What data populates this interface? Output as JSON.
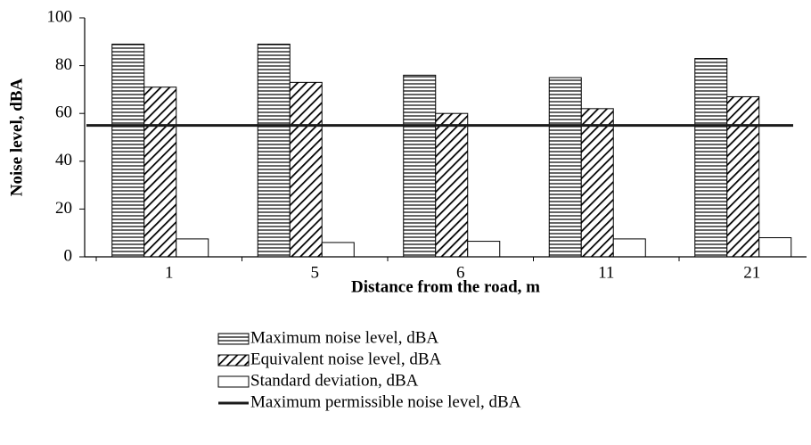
{
  "chart_data": {
    "type": "bar",
    "x_label": "Distance from the road, m",
    "y_label": "Noise level, dBA",
    "categories": [
      "1",
      "5",
      "6",
      "11",
      "21"
    ],
    "series": [
      {
        "name": "Maximum noise level, dBA",
        "color": "#000000",
        "pattern": "horizontal",
        "values": [
          89,
          89,
          76,
          75,
          83
        ]
      },
      {
        "name": "Equivalent noise level, dBA",
        "color": "#000000",
        "pattern": "diagonal",
        "values": [
          71,
          73,
          60,
          62,
          67
        ]
      },
      {
        "name": "Standard deviation, dBA",
        "color": "#000000",
        "pattern": "none",
        "values": [
          7.5,
          6,
          6.5,
          7.5,
          8
        ]
      }
    ],
    "threshold": {
      "name": "Maximum permissible noise level, dBA",
      "value": 55,
      "color": "#1a1a1a"
    },
    "ylim": [
      0,
      100
    ],
    "yticks": [
      0,
      20,
      40,
      60,
      80,
      100
    ],
    "grid": false,
    "legend": "bottom"
  }
}
